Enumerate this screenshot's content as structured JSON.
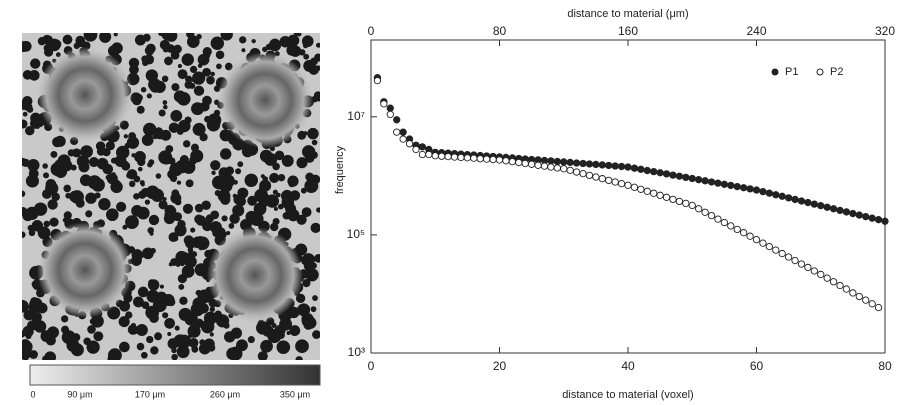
{
  "image": {
    "colorbar_labels": [
      "0",
      "90 μm",
      "170 μm",
      "260 μm",
      "350 μm"
    ]
  },
  "chart_data": {
    "type": "scatter",
    "xlabel": "distance to material (voxel)",
    "x2label": "distance to material (μm)",
    "ylabel": "frequency",
    "xlim": [
      0,
      80
    ],
    "xticks": [
      0,
      20,
      40,
      60,
      80
    ],
    "x2lim": [
      0,
      320
    ],
    "x2ticks": [
      0,
      80,
      160,
      240,
      320
    ],
    "ylim": [
      1000,
      200000000
    ],
    "log_y": true,
    "yticks": [
      {
        "value": 1000,
        "label": "10³"
      },
      {
        "value": 100000,
        "label": "10⁵"
      },
      {
        "value": 10000000,
        "label": "10⁷"
      }
    ],
    "legend": "upper right",
    "series": [
      {
        "name": "P1",
        "color": "#222222",
        "filled": true,
        "x": [
          1,
          2,
          3,
          4,
          5,
          6,
          7,
          8,
          9,
          10,
          11,
          12,
          13,
          14,
          15,
          16,
          17,
          18,
          19,
          20,
          21,
          22,
          23,
          24,
          25,
          26,
          27,
          28,
          29,
          30,
          31,
          32,
          33,
          34,
          35,
          36,
          37,
          38,
          39,
          40,
          41,
          42,
          43,
          44,
          45,
          46,
          47,
          48,
          49,
          50,
          51,
          52,
          53,
          54,
          55,
          56,
          57,
          58,
          59,
          60,
          61,
          62,
          63,
          64,
          65,
          66,
          67,
          68,
          69,
          70,
          71,
          72,
          73,
          74,
          75,
          76,
          77,
          78,
          79,
          80
        ],
        "values": [
          46000000,
          18000000,
          14000000,
          8900000,
          5500000,
          4200000,
          3300000,
          3100000,
          2800000,
          2500000,
          2470000,
          2420000,
          2380000,
          2330000,
          2290000,
          2250000,
          2210000,
          2170000,
          2130000,
          2090000,
          2050000,
          2010000,
          1970000,
          1930000,
          1890000,
          1860000,
          1820000,
          1790000,
          1750000,
          1720000,
          1690000,
          1650000,
          1620000,
          1590000,
          1560000,
          1530000,
          1500000,
          1470000,
          1440000,
          1410000,
          1350000,
          1290000,
          1230000,
          1180000,
          1130000,
          1080000,
          1030000,
          986000,
          943000,
          902000,
          862000,
          824000,
          788000,
          753000,
          720000,
          689000,
          658000,
          630000,
          602000,
          575000,
          541000,
          509000,
          479000,
          451000,
          424000,
          399000,
          375000,
          353000,
          332000,
          313000,
          294000,
          277000,
          260000,
          245000,
          230000,
          217000,
          204000,
          192000,
          181000,
          170000
        ]
      },
      {
        "name": "P2",
        "color": "#222222",
        "filled": false,
        "x": [
          1,
          2,
          3,
          4,
          5,
          6,
          7,
          8,
          9,
          10,
          11,
          12,
          13,
          14,
          15,
          16,
          17,
          18,
          19,
          20,
          21,
          22,
          23,
          24,
          25,
          26,
          27,
          28,
          29,
          30,
          31,
          32,
          33,
          34,
          35,
          36,
          37,
          38,
          39,
          40,
          41,
          42,
          43,
          44,
          45,
          46,
          47,
          48,
          49,
          50,
          51,
          52,
          53,
          54,
          55,
          56,
          57,
          58,
          59,
          60,
          61,
          62,
          63,
          64,
          65,
          66,
          67,
          68,
          69,
          70,
          71,
          72,
          73,
          74,
          75,
          76,
          77,
          78,
          79
        ],
        "values": [
          41000000,
          16600000,
          11000000,
          5500000,
          4200000,
          3500000,
          2800000,
          2300000,
          2300000,
          2190000,
          2150000,
          2120000,
          2080000,
          2050000,
          2020000,
          1990000,
          1950000,
          1920000,
          1890000,
          1860000,
          1800000,
          1740000,
          1680000,
          1620000,
          1570000,
          1510000,
          1460000,
          1410000,
          1360000,
          1320000,
          1240000,
          1160000,
          1090000,
          1020000,
          955000,
          895000,
          839000,
          787000,
          738000,
          692000,
          640000,
          592000,
          547000,
          506000,
          468000,
          433000,
          400000,
          370000,
          342000,
          316000,
          277000,
          242000,
          212000,
          185000,
          162000,
          142000,
          124000,
          109000,
          95100,
          83200,
          72600,
          63400,
          55300,
          48300,
          42200,
          36800,
          32100,
          28100,
          24500,
          21400,
          18500,
          16100,
          13900,
          12100,
          10400,
          9060,
          7850,
          6810,
          5890
        ]
      }
    ]
  }
}
